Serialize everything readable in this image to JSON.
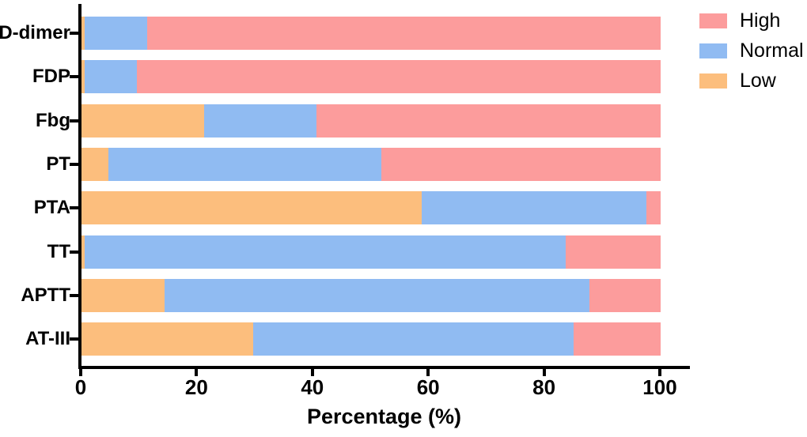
{
  "figure": {
    "background": "#ffffff",
    "axis_color": "#000000"
  },
  "legend": {
    "items": [
      {
        "label": "High",
        "color": "#FC9C9C"
      },
      {
        "label": "Normal",
        "color": "#90BBF2"
      },
      {
        "label": "Low",
        "color": "#FCBE7D"
      }
    ]
  },
  "chart_data": {
    "type": "bar",
    "orientation": "horizontal",
    "stacked": true,
    "title": "",
    "xlabel": "Percentage (%)",
    "ylabel": "",
    "categories": [
      "D-dimer",
      "FDP",
      "Fbg",
      "PT",
      "PTA",
      "TT",
      "APTT",
      "AT-III"
    ],
    "series": [
      {
        "name": "Low",
        "color": "#FCBE7D",
        "values": [
          0.5,
          0.5,
          21.2,
          4.6,
          58.7,
          0.5,
          14.3,
          29.6
        ]
      },
      {
        "name": "Normal",
        "color": "#90BBF2",
        "values": [
          10.8,
          9.1,
          19.4,
          47.2,
          38.8,
          83.1,
          73.4,
          55.4
        ]
      },
      {
        "name": "High",
        "color": "#FC9C9C",
        "values": [
          88.7,
          90.4,
          59.4,
          48.2,
          2.5,
          16.4,
          12.3,
          15.0
        ]
      }
    ],
    "xticks": [
      0,
      20,
      40,
      60,
      80,
      100
    ],
    "xlim": [
      0,
      105
    ],
    "grid": false,
    "legend_position": "top-right",
    "legend_order": [
      "High",
      "Normal",
      "Low"
    ]
  }
}
